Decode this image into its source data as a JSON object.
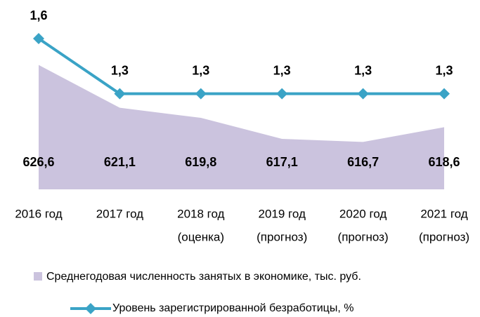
{
  "chart_data": {
    "type": "area_line",
    "categories": [
      [
        "2016 год"
      ],
      [
        "2017 год"
      ],
      [
        "2018 год",
        "(оценка)"
      ],
      [
        "2019 год",
        "(прогноз)"
      ],
      [
        "2020 год",
        "(прогноз)"
      ],
      [
        "2021 год",
        "(прогноз)"
      ]
    ],
    "series": [
      {
        "name": "Среднегодовая численность занятых в экономике, тыс. руб.",
        "type": "area",
        "color": "#cbc3de",
        "values": [
          626.6,
          621.1,
          619.8,
          617.1,
          616.7,
          618.6
        ],
        "value_labels": [
          "626,6",
          "621,1",
          "619,8",
          "617,1",
          "616,7",
          "618,6"
        ]
      },
      {
        "name": "Уровень зарегистрированной безработицы, %",
        "type": "line",
        "axis": "y2",
        "color": "#3aa3c6",
        "values": [
          1.6,
          1.3,
          1.3,
          1.3,
          1.3,
          1.3
        ],
        "value_labels": [
          "1,6",
          "1,3",
          "1,3",
          "1,3",
          "1,3",
          "1,3"
        ]
      }
    ],
    "ylim": [
      610.6,
      630
    ],
    "y2lim": [
      0.78,
      1.6
    ]
  }
}
